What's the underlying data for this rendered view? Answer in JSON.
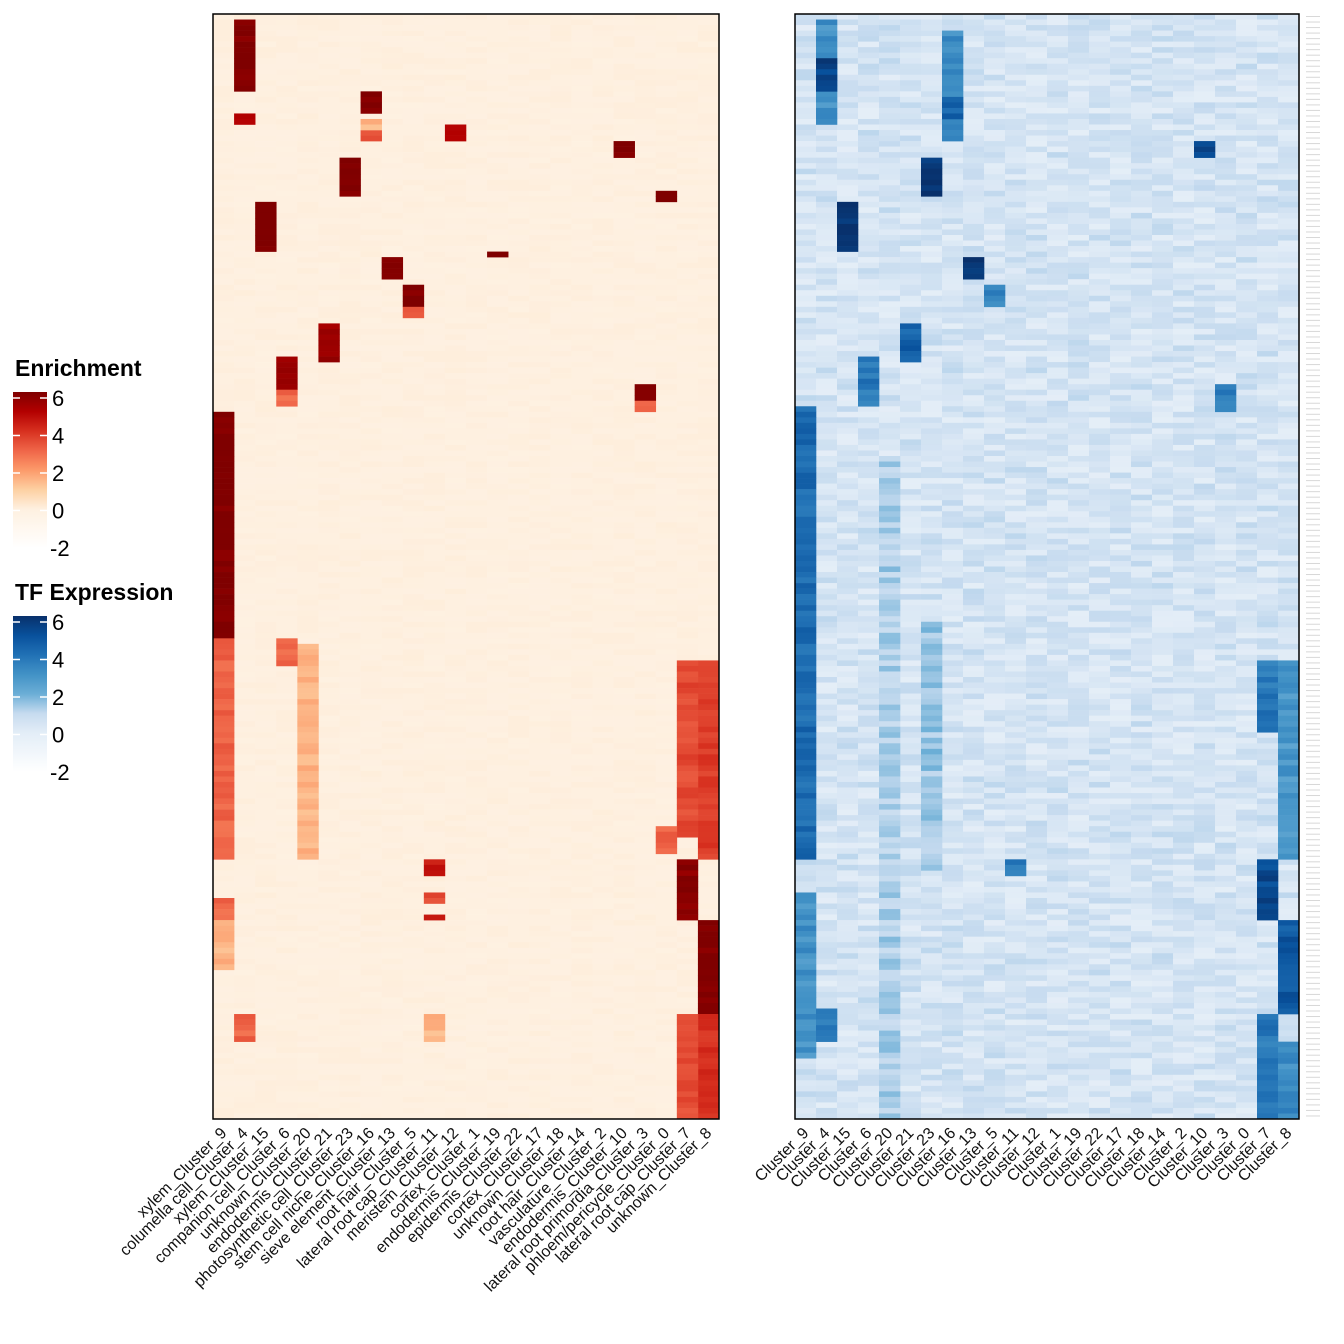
{
  "chart_data": [
    {
      "type": "heatmap",
      "name": "Enrichment",
      "legend_title": "Enrichment",
      "legend_ticks": [
        "6",
        "4",
        "2",
        "0",
        "-2"
      ],
      "legend_values": [
        6,
        4,
        2,
        0,
        -2
      ],
      "range": [
        -2,
        6
      ],
      "colors": {
        "low": "#ffffff",
        "mid": "#fef0e0",
        "high": "#7f0000"
      },
      "columns": [
        "xylem_Cluster_9",
        "columella cell_Cluster_4",
        "xylem_Cluster_15",
        "companion cell_Cluster_6",
        "unknown_Cluster_20",
        "endodermis_Cluster_21",
        "photosynthetic cell_Cluster_23",
        "stem cell niche_Cluster_16",
        "sieve element_Cluster_13",
        "root hair_Cluster_5",
        "lateral root cap_Cluster_11",
        "meristem_Cluster_12",
        "cortex_Cluster_1",
        "endodermis_Cluster_19",
        "epidermis_Cluster_22",
        "cortex_Cluster_17",
        "unknown_Cluster_18",
        "root hair_Cluster_14",
        "vasculature_Cluster_2",
        "endodermis_Cluster_10",
        "lateral root primordia_Cluster_3",
        "phloem/pericycle_Cluster_0",
        "lateral root cap_Cluster_7",
        "unknown_Cluster_8"
      ],
      "n_rows": 200,
      "background_value": 0,
      "blocks": [
        {
          "col": 1,
          "rows": [
            1,
            14
          ],
          "value": 6
        },
        {
          "col": 1,
          "rows": [
            18,
            20
          ],
          "value": 5
        },
        {
          "col": 7,
          "rows": [
            14,
            18
          ],
          "value": 6
        },
        {
          "col": 7,
          "rows": [
            21,
            23
          ],
          "value": 3.5
        },
        {
          "col": 7,
          "rows": [
            19,
            21
          ],
          "value": 1.5
        },
        {
          "col": 6,
          "rows": [
            26,
            33
          ],
          "value": 6
        },
        {
          "col": 2,
          "rows": [
            34,
            43
          ],
          "value": 6
        },
        {
          "col": 8,
          "rows": [
            44,
            48
          ],
          "value": 6
        },
        {
          "col": 9,
          "rows": [
            49,
            53
          ],
          "value": 6
        },
        {
          "col": 9,
          "rows": [
            53,
            55
          ],
          "value": 3.5
        },
        {
          "col": 5,
          "rows": [
            56,
            63
          ],
          "value": 5.5
        },
        {
          "col": 3,
          "rows": [
            62,
            68
          ],
          "value": 5.5
        },
        {
          "col": 3,
          "rows": [
            68,
            71
          ],
          "value": 3
        },
        {
          "col": 20,
          "rows": [
            67,
            70
          ],
          "value": 6
        },
        {
          "col": 20,
          "rows": [
            70,
            72
          ],
          "value": 3
        },
        {
          "col": 19,
          "rows": [
            23,
            26
          ],
          "value": 6
        },
        {
          "col": 11,
          "rows": [
            20,
            23
          ],
          "value": 5
        },
        {
          "col": 13,
          "rows": [
            43,
            44
          ],
          "value": 6
        },
        {
          "col": 21,
          "rows": [
            32,
            34
          ],
          "value": 6
        },
        {
          "col": 0,
          "rows": [
            72,
            113
          ],
          "value": 6
        },
        {
          "col": 0,
          "rows": [
            113,
            153
          ],
          "value": 3
        },
        {
          "col": 0,
          "rows": [
            160,
            164
          ],
          "value": 3
        },
        {
          "col": 0,
          "rows": [
            164,
            173
          ],
          "value": 1.5
        },
        {
          "col": 23,
          "rows": [
            117,
            153
          ],
          "value": 3.8
        },
        {
          "col": 23,
          "rows": [
            164,
            181
          ],
          "value": 6
        },
        {
          "col": 23,
          "rows": [
            181,
            200
          ],
          "value": 4
        },
        {
          "col": 22,
          "rows": [
            117,
            149
          ],
          "value": 3.5
        },
        {
          "col": 22,
          "rows": [
            153,
            164
          ],
          "value": 5.8
        },
        {
          "col": 22,
          "rows": [
            181,
            200
          ],
          "value": 3.5
        },
        {
          "col": 4,
          "rows": [
            114,
            153
          ],
          "value": 1.5
        },
        {
          "col": 3,
          "rows": [
            113,
            118
          ],
          "value": 3
        },
        {
          "col": 10,
          "rows": [
            153,
            156
          ],
          "value": 4.5
        },
        {
          "col": 10,
          "rows": [
            159,
            161
          ],
          "value": 3.5
        },
        {
          "col": 10,
          "rows": [
            163,
            164
          ],
          "value": 4.5
        },
        {
          "col": 1,
          "rows": [
            181,
            186
          ],
          "value": 3
        },
        {
          "col": 10,
          "rows": [
            181,
            186
          ],
          "value": 1.5
        },
        {
          "col": 21,
          "rows": [
            147,
            152
          ],
          "value": 3
        }
      ]
    },
    {
      "type": "heatmap",
      "name": "TF Expression",
      "legend_title": "TF Expression",
      "legend_ticks": [
        "6",
        "4",
        "2",
        "0",
        "-2"
      ],
      "legend_values": [
        6,
        4,
        2,
        0,
        -2
      ],
      "range": [
        -2,
        6
      ],
      "colors": {
        "low": "#ffffff",
        "mid": "#dbe8f5",
        "high": "#08306b"
      },
      "columns": [
        "Cluster_9",
        "Cluster_4",
        "Cluster_15",
        "Cluster_6",
        "Cluster_20",
        "Cluster_21",
        "Cluster_23",
        "Cluster_16",
        "Cluster_13",
        "Cluster_5",
        "Cluster_11",
        "Cluster_12",
        "Cluster_1",
        "Cluster_19",
        "Cluster_22",
        "Cluster_17",
        "Cluster_18",
        "Cluster_14",
        "Cluster_2",
        "Cluster_10",
        "Cluster_3",
        "Cluster_0",
        "Cluster_7",
        "Cluster_8"
      ],
      "n_rows": 200,
      "background_value": 0.5,
      "blocks": [
        {
          "col": 1,
          "rows": [
            1,
            20
          ],
          "value": 3
        },
        {
          "col": 1,
          "rows": [
            8,
            14
          ],
          "value": 5.5
        },
        {
          "col": 7,
          "rows": [
            3,
            23
          ],
          "value": 3.2
        },
        {
          "col": 7,
          "rows": [
            15,
            19
          ],
          "value": 4.5
        },
        {
          "col": 6,
          "rows": [
            26,
            33
          ],
          "value": 5.8
        },
        {
          "col": 2,
          "rows": [
            34,
            43
          ],
          "value": 5.8
        },
        {
          "col": 8,
          "rows": [
            44,
            48
          ],
          "value": 5.8
        },
        {
          "col": 9,
          "rows": [
            49,
            53
          ],
          "value": 3.5
        },
        {
          "col": 5,
          "rows": [
            56,
            63
          ],
          "value": 4.5
        },
        {
          "col": 3,
          "rows": [
            62,
            71
          ],
          "value": 3.8
        },
        {
          "col": 19,
          "rows": [
            23,
            26
          ],
          "value": 5.5
        },
        {
          "col": 20,
          "rows": [
            67,
            72
          ],
          "value": 3.5
        },
        {
          "col": 0,
          "rows": [
            71,
            153
          ],
          "value": 4.2
        },
        {
          "col": 0,
          "rows": [
            159,
            189
          ],
          "value": 3
        },
        {
          "col": 22,
          "rows": [
            117,
            130
          ],
          "value": 3.8
        },
        {
          "col": 22,
          "rows": [
            153,
            164
          ],
          "value": 5.2
        },
        {
          "col": 22,
          "rows": [
            181,
            200
          ],
          "value": 3.8
        },
        {
          "col": 23,
          "rows": [
            117,
            153
          ],
          "value": 2.8
        },
        {
          "col": 23,
          "rows": [
            164,
            181
          ],
          "value": 4.8
        },
        {
          "col": 23,
          "rows": [
            186,
            200
          ],
          "value": 3.2
        },
        {
          "col": 10,
          "rows": [
            153,
            156
          ],
          "value": 3.8
        },
        {
          "col": 1,
          "rows": [
            180,
            186
          ],
          "value": 3.5
        },
        {
          "col": 4,
          "rows": [
            80,
            200
          ],
          "value": 1.3
        },
        {
          "col": 6,
          "rows": [
            110,
            155
          ],
          "value": 1.5
        }
      ]
    }
  ]
}
